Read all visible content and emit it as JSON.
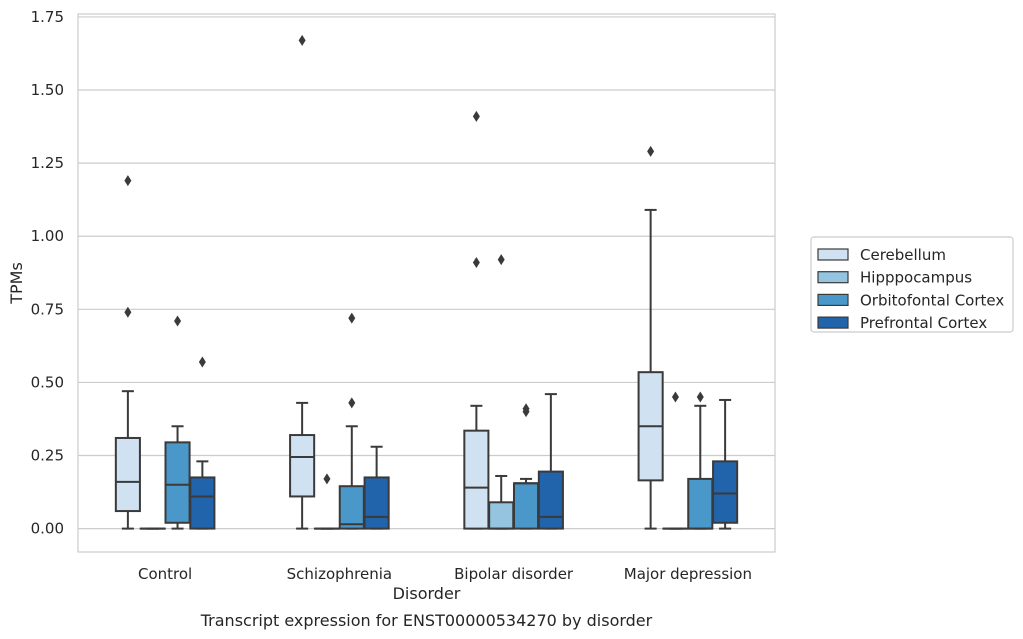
{
  "chart_data": {
    "type": "box",
    "title": "Transcript expression for ENST00000534270 by disorder",
    "xlabel": "Disorder",
    "ylabel": "TPMs",
    "ylim": [
      -0.08,
      1.76
    ],
    "yticks": [
      0.0,
      0.25,
      0.5,
      0.75,
      1.0,
      1.25,
      1.5,
      1.75
    ],
    "ytick_labels": [
      "0.00",
      "0.25",
      "0.50",
      "0.75",
      "1.00",
      "1.25",
      "1.50",
      "1.75"
    ],
    "categories": [
      "Control",
      "Schizophrenia",
      "Bipolar disorder",
      "Major depression"
    ],
    "grid": "horizontal",
    "legend_position": "right",
    "series": [
      {
        "name": "Cerebellum",
        "color": "#d0e1f2",
        "boxes": [
          {
            "whislo": 0.0,
            "q1": 0.06,
            "med": 0.16,
            "q3": 0.31,
            "whishi": 0.47,
            "fliers": [
              0.74,
              1.19
            ]
          },
          {
            "whislo": 0.0,
            "q1": 0.11,
            "med": 0.245,
            "q3": 0.32,
            "whishi": 0.43,
            "fliers": [
              1.67
            ]
          },
          {
            "whislo": 0.0,
            "q1": 0.0,
            "med": 0.14,
            "q3": 0.335,
            "whishi": 0.42,
            "fliers": [
              0.91,
              1.41
            ]
          },
          {
            "whislo": 0.0,
            "q1": 0.165,
            "med": 0.35,
            "q3": 0.535,
            "whishi": 1.09,
            "fliers": [
              1.29
            ]
          }
        ]
      },
      {
        "name": "Hipppocampus",
        "color": "#94c4df",
        "boxes": [
          {
            "whislo": 0.0,
            "q1": 0.0,
            "med": 0.0,
            "q3": 0.0,
            "whishi": 0.0,
            "fliers": []
          },
          {
            "whislo": 0.0,
            "q1": 0.0,
            "med": 0.0,
            "q3": 0.0,
            "whishi": 0.0,
            "fliers": [
              0.17
            ]
          },
          {
            "whislo": 0.0,
            "q1": 0.0,
            "med": 0.0,
            "q3": 0.09,
            "whishi": 0.18,
            "fliers": [
              0.92
            ]
          },
          {
            "whislo": 0.0,
            "q1": 0.0,
            "med": 0.0,
            "q3": 0.0,
            "whishi": 0.0,
            "fliers": [
              0.45
            ]
          }
        ]
      },
      {
        "name": "Orbitofontal Cortex",
        "color": "#4a98c9",
        "boxes": [
          {
            "whislo": 0.0,
            "q1": 0.02,
            "med": 0.15,
            "q3": 0.295,
            "whishi": 0.35,
            "fliers": [
              0.71
            ]
          },
          {
            "whislo": 0.0,
            "q1": 0.0,
            "med": 0.015,
            "q3": 0.145,
            "whishi": 0.35,
            "fliers": [
              0.43,
              0.72
            ]
          },
          {
            "whislo": 0.0,
            "q1": 0.0,
            "med": 0.155,
            "q3": 0.155,
            "whishi": 0.17,
            "fliers": [
              0.4,
              0.41
            ]
          },
          {
            "whislo": 0.0,
            "q1": 0.0,
            "med": 0.0,
            "q3": 0.17,
            "whishi": 0.42,
            "fliers": [
              0.45
            ]
          }
        ]
      },
      {
        "name": "Prefrontal Cortex",
        "color": "#2164ab",
        "boxes": [
          {
            "whislo": 0.0,
            "q1": 0.0,
            "med": 0.11,
            "q3": 0.175,
            "whishi": 0.23,
            "fliers": [
              0.57
            ]
          },
          {
            "whislo": 0.0,
            "q1": 0.0,
            "med": 0.04,
            "q3": 0.175,
            "whishi": 0.28,
            "fliers": []
          },
          {
            "whislo": 0.0,
            "q1": 0.0,
            "med": 0.04,
            "q3": 0.195,
            "whishi": 0.46,
            "fliers": []
          },
          {
            "whislo": 0.0,
            "q1": 0.02,
            "med": 0.12,
            "q3": 0.23,
            "whishi": 0.44,
            "fliers": []
          }
        ]
      }
    ]
  }
}
